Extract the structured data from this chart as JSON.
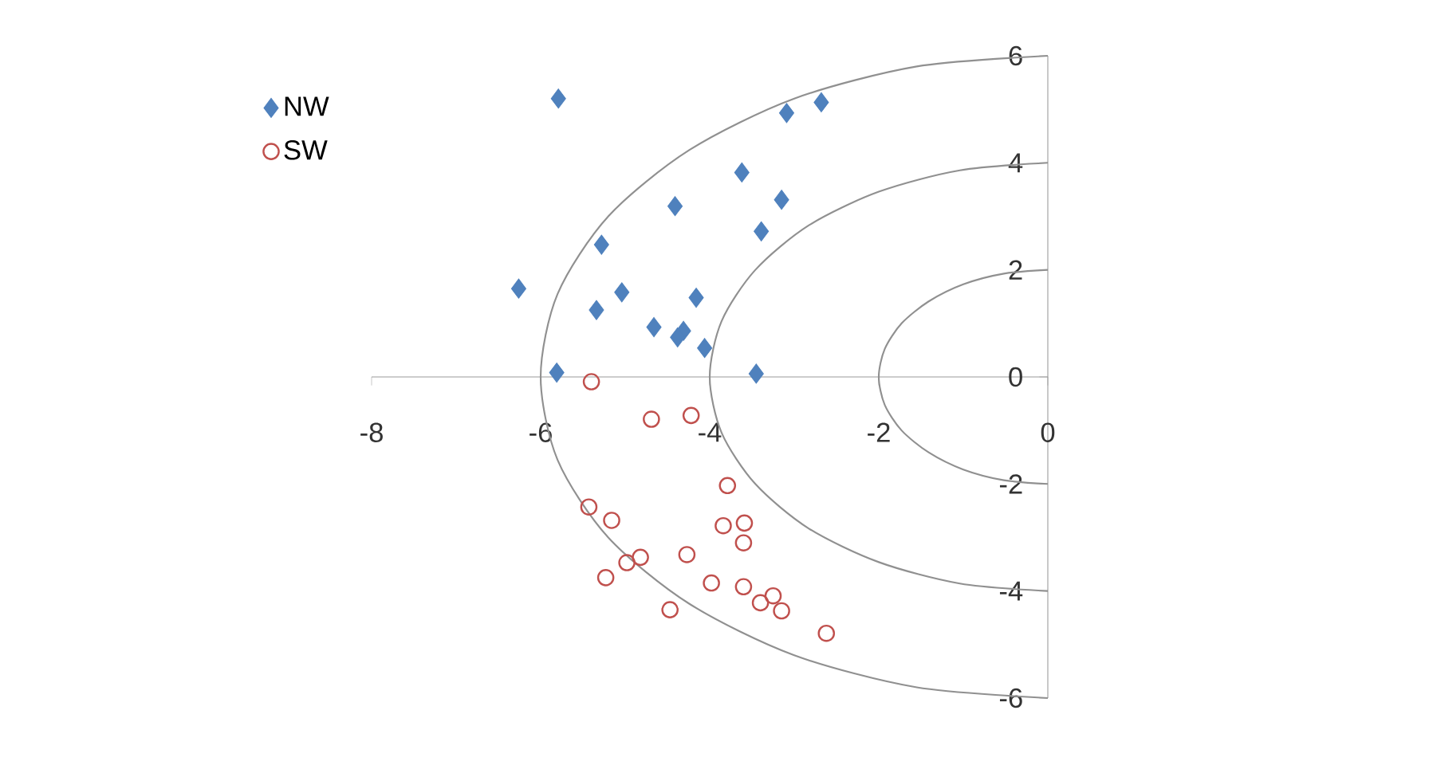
{
  "chart_data": {
    "type": "scatter",
    "xlim": [
      -8,
      0
    ],
    "ylim": [
      -6,
      6
    ],
    "xticks": [
      -8,
      -6,
      -4,
      -2,
      0
    ],
    "yticks": [
      -6,
      -4,
      -2,
      0,
      2,
      4,
      6
    ],
    "grid": false,
    "legend": "top left",
    "series": [
      {
        "name": "NW",
        "color": "#4f81bd",
        "marker": "diamond",
        "x": [
          -5.79,
          -3.09,
          -2.68,
          -3.62,
          -3.15,
          -4.41,
          -3.39,
          -5.28,
          -6.26,
          -5.04,
          -5.34,
          -4.16,
          -4.66,
          -4.31,
          -4.38,
          -4.06,
          -5.81,
          -3.45
        ],
        "values": [
          5.2,
          4.93,
          5.13,
          3.82,
          3.31,
          3.19,
          2.72,
          2.47,
          1.65,
          1.58,
          1.25,
          1.48,
          0.93,
          0.86,
          0.74,
          0.54,
          0.08,
          0.06
        ]
      },
      {
        "name": "SW",
        "color": "#c0504d",
        "marker": "circle",
        "x": [
          -5.4,
          -4.69,
          -4.22,
          -3.79,
          -5.43,
          -5.16,
          -3.84,
          -3.59,
          -3.6,
          -4.82,
          -4.98,
          -4.27,
          -5.23,
          -3.98,
          -3.6,
          -3.25,
          -3.4,
          -3.15,
          -4.47,
          -2.62
        ],
        "values": [
          -0.09,
          -0.79,
          -0.72,
          -2.03,
          -2.43,
          -2.68,
          -2.78,
          -2.73,
          -3.1,
          -3.37,
          -3.47,
          -3.32,
          -3.75,
          -3.85,
          -3.92,
          -4.09,
          -4.22,
          -4.37,
          -4.35,
          -4.79
        ]
      },
      {
        "type": "line",
        "color": "#909090",
        "marker": "none",
        "x": [
          0,
          -0.52,
          -1.0,
          -1.41,
          -1.73,
          -1.93,
          -2.0,
          -1.93,
          -1.73,
          -1.41,
          -1.0,
          -0.52,
          0
        ],
        "values": [
          2.0,
          1.93,
          1.73,
          1.41,
          1.0,
          0.52,
          0,
          -0.52,
          -1.0,
          -1.41,
          -1.73,
          -1.93,
          -2.0
        ]
      },
      {
        "type": "line",
        "color": "#909090",
        "marker": "none",
        "x": [
          0,
          -1.04,
          -2.0,
          -2.83,
          -3.46,
          -3.86,
          -4.0,
          -3.86,
          -3.46,
          -2.83,
          -2.0,
          -1.04,
          0
        ],
        "values": [
          4.0,
          3.86,
          3.46,
          2.83,
          2.0,
          1.04,
          0,
          -1.04,
          -2.0,
          -2.83,
          -3.46,
          -3.86,
          -4.0
        ]
      },
      {
        "type": "line",
        "color": "#909090",
        "marker": "none",
        "x": [
          0,
          -1.55,
          -3.0,
          -4.24,
          -5.2,
          -5.8,
          -6.0,
          -5.8,
          -5.2,
          -4.24,
          -3.0,
          -1.55,
          0
        ],
        "values": [
          6.0,
          5.8,
          5.2,
          4.24,
          3.0,
          1.55,
          0,
          -1.55,
          -3.0,
          -4.24,
          -5.2,
          -5.8,
          -6.0
        ]
      }
    ]
  }
}
